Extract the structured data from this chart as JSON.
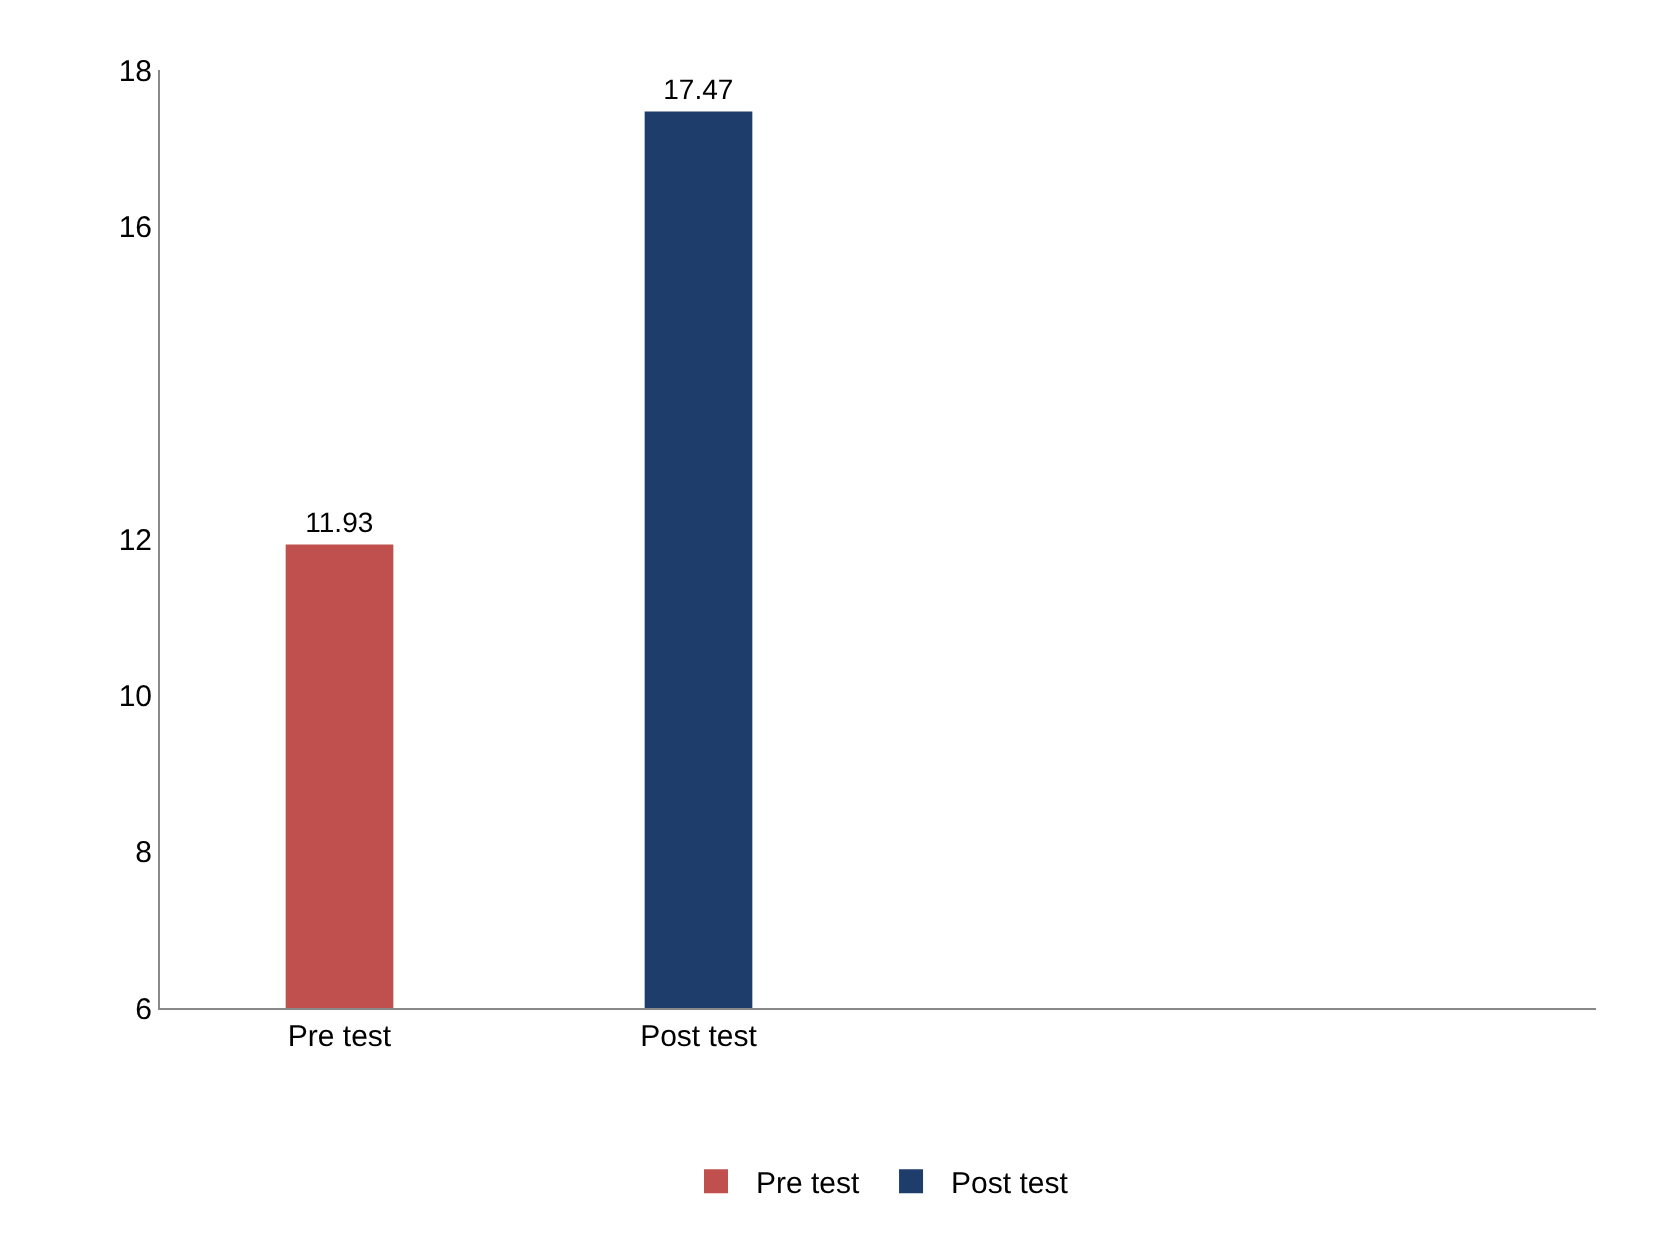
{
  "chart_data": {
    "type": "bar",
    "categories": [
      "Pre test",
      "Post test",
      null,
      null
    ],
    "series": [
      {
        "name": "Pre test",
        "color": "#c0504d",
        "values": [
          11.93,
          null,
          null,
          null
        ]
      },
      {
        "name": "Post test",
        "color": "#1f3d6b",
        "values": [
          null,
          17.47,
          null,
          null
        ]
      }
    ],
    "ylim": [
      6,
      18
    ],
    "yticks": [
      6,
      8,
      10,
      12,
      16,
      18
    ],
    "grid": false,
    "legend": "bottom",
    "data_labels": true
  }
}
